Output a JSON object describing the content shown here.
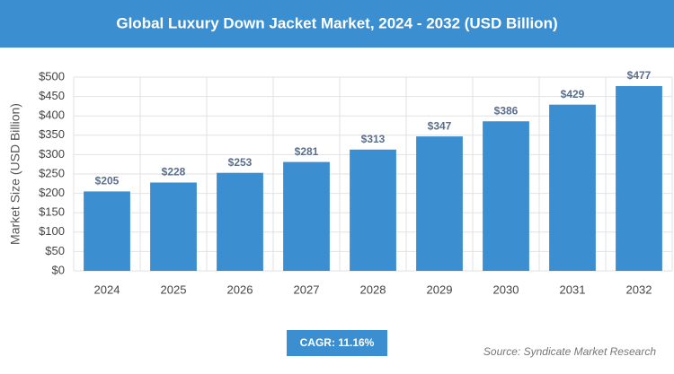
{
  "chart_data": {
    "type": "bar",
    "title": "Global Luxury Down Jacket Market, 2024 - 2032 (USD Billion)",
    "y_label": "Market Size (USD Billion)",
    "categories": [
      "2024",
      "2025",
      "2026",
      "2027",
      "2028",
      "2029",
      "2030",
      "2031",
      "2032"
    ],
    "values": [
      205,
      228,
      253,
      281,
      313,
      347,
      386,
      429,
      477
    ],
    "value_labels": [
      "$205",
      "$228",
      "$253",
      "$281",
      "$313",
      "$347",
      "$386",
      "$429",
      "$477"
    ],
    "color": "#3b8fd0",
    "ylim": [
      0,
      500
    ],
    "yticks": [
      {
        "value": 0,
        "label": "$0"
      },
      {
        "value": 50,
        "label": "$50"
      },
      {
        "value": 100,
        "label": "$100"
      },
      {
        "value": 150,
        "label": "$150"
      },
      {
        "value": 200,
        "label": "$200"
      },
      {
        "value": 250,
        "label": "$250"
      },
      {
        "value": 300,
        "label": "$300"
      },
      {
        "value": 350,
        "label": "$350"
      },
      {
        "value": 400,
        "label": "$400"
      },
      {
        "value": 450,
        "label": "$450"
      },
      {
        "value": 500,
        "label": "$500"
      }
    ],
    "grid": true,
    "annotation": "CAGR: 11.16%",
    "source": "Source: Syndicate Market Research"
  }
}
